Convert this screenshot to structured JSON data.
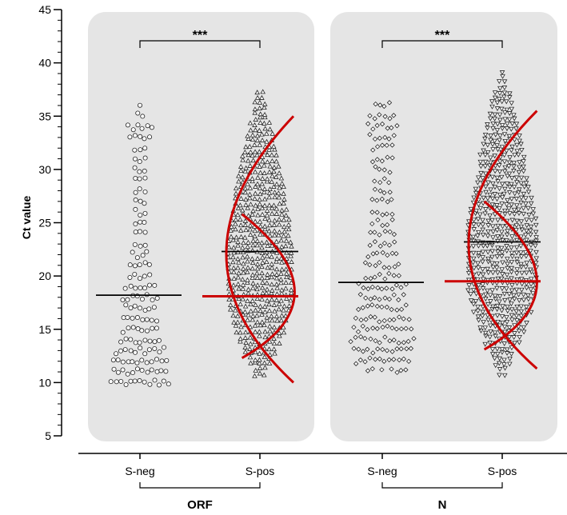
{
  "chart_data": {
    "type": "scatter",
    "subtype": "dot-plot",
    "ylabel": "Ct value",
    "ylim": [
      5,
      45
    ],
    "yticks": [
      5,
      10,
      15,
      20,
      25,
      30,
      35,
      40,
      45
    ],
    "grid": false,
    "panel_color": "#e5e5e5",
    "accent_color": "#cc0000",
    "groups": [
      {
        "name": "ORF",
        "significance": "***",
        "categories": [
          {
            "label": "S-neg",
            "marker": "circle",
            "n_points": 150,
            "y_min": 9.7,
            "y_max": 36.5,
            "median": 18.2,
            "density": [
              [
                10,
                16
              ],
              [
                11,
                14
              ],
              [
                12,
                14
              ],
              [
                13,
                13
              ],
              [
                14,
                11
              ],
              [
                15,
                10
              ],
              [
                16,
                9
              ],
              [
                17,
                8
              ],
              [
                18,
                9
              ],
              [
                19,
                8
              ],
              [
                20,
                6
              ],
              [
                21,
                6
              ],
              [
                22,
                5
              ],
              [
                23,
                4
              ],
              [
                24,
                3
              ],
              [
                25,
                4
              ],
              [
                26,
                4
              ],
              [
                27,
                3
              ],
              [
                28,
                3
              ],
              [
                29,
                3
              ],
              [
                30,
                3
              ],
              [
                31,
                4
              ],
              [
                32,
                4
              ],
              [
                33,
                6
              ],
              [
                34,
                7
              ],
              [
                35,
                2
              ],
              [
                36,
                1
              ]
            ]
          },
          {
            "label": "S-pos",
            "marker": "triangle-up",
            "n_points": 500,
            "y_min": 10.3,
            "y_max": 37.8,
            "median": 18.1,
            "mean_line": 22.3,
            "density": [
              [
                10,
                2
              ],
              [
                11,
                4
              ],
              [
                12,
                6
              ],
              [
                13,
                9
              ],
              [
                14,
                11
              ],
              [
                15,
                13
              ],
              [
                16,
                15
              ],
              [
                17,
                16
              ],
              [
                18,
                17
              ],
              [
                19,
                17
              ],
              [
                20,
                17
              ],
              [
                21,
                17
              ],
              [
                22,
                17
              ],
              [
                23,
                17
              ],
              [
                24,
                16
              ],
              [
                25,
                16
              ],
              [
                26,
                15
              ],
              [
                27,
                14
              ],
              [
                28,
                13
              ],
              [
                29,
                12
              ],
              [
                30,
                11
              ],
              [
                31,
                10
              ],
              [
                32,
                9
              ],
              [
                33,
                7
              ],
              [
                34,
                6
              ],
              [
                35,
                4
              ],
              [
                36,
                3
              ],
              [
                37,
                2
              ]
            ],
            "fit_curves": [
              {
                "y": [
                  10,
                  22.1,
                  35
                ],
                "x_offset": [
                  0.6,
                  -0.6,
                  0.6
                ]
              },
              {
                "y": [
                  12.3,
                  18.5,
                  25.8
                ],
                "x_offset": [
                  -0.32,
                  0.62,
                  -0.32
                ]
              }
            ]
          }
        ]
      },
      {
        "name": "N",
        "significance": "***",
        "categories": [
          {
            "label": "S-neg",
            "marker": "diamond",
            "n_points": 200,
            "y_min": 10.9,
            "y_max": 36.6,
            "median": 19.4,
            "density": [
              [
                11,
                9
              ],
              [
                12,
                10
              ],
              [
                13,
                11
              ],
              [
                14,
                12
              ],
              [
                15,
                11
              ],
              [
                16,
                10
              ],
              [
                17,
                9
              ],
              [
                18,
                8
              ],
              [
                19,
                9
              ],
              [
                20,
                7
              ],
              [
                21,
                7
              ],
              [
                22,
                6
              ],
              [
                23,
                5
              ],
              [
                24,
                5
              ],
              [
                25,
                4
              ],
              [
                26,
                4
              ],
              [
                27,
                4
              ],
              [
                28,
                3
              ],
              [
                29,
                3
              ],
              [
                30,
                3
              ],
              [
                31,
                4
              ],
              [
                32,
                4
              ],
              [
                33,
                5
              ],
              [
                34,
                6
              ],
              [
                35,
                5
              ],
              [
                36,
                3
              ]
            ]
          },
          {
            "label": "S-pos",
            "marker": "triangle-down",
            "n_points": 550,
            "y_min": 10.6,
            "y_max": 39.4,
            "median": 19.5,
            "mean_line": 23.2,
            "density": [
              [
                11,
                2
              ],
              [
                12,
                4
              ],
              [
                13,
                6
              ],
              [
                14,
                9
              ],
              [
                15,
                11
              ],
              [
                16,
                13
              ],
              [
                17,
                15
              ],
              [
                18,
                16
              ],
              [
                19,
                17
              ],
              [
                20,
                17
              ],
              [
                21,
                18
              ],
              [
                22,
                18
              ],
              [
                23,
                18
              ],
              [
                24,
                17
              ],
              [
                25,
                17
              ],
              [
                26,
                16
              ],
              [
                27,
                15
              ],
              [
                28,
                14
              ],
              [
                29,
                13
              ],
              [
                30,
                12
              ],
              [
                31,
                11
              ],
              [
                32,
                10
              ],
              [
                33,
                9
              ],
              [
                34,
                8
              ],
              [
                35,
                7
              ],
              [
                36,
                6
              ],
              [
                37,
                5
              ],
              [
                38,
                2
              ],
              [
                39,
                1
              ]
            ],
            "fit_curves": [
              {
                "y": [
                  11.3,
                  23,
                  35.5
                ],
                "x_offset": [
                  0.62,
                  -0.6,
                  0.62
                ]
              },
              {
                "y": [
                  13.1,
                  19.4,
                  27
                ],
                "x_offset": [
                  -0.32,
                  0.62,
                  -0.32
                ]
              }
            ]
          }
        ]
      }
    ]
  }
}
